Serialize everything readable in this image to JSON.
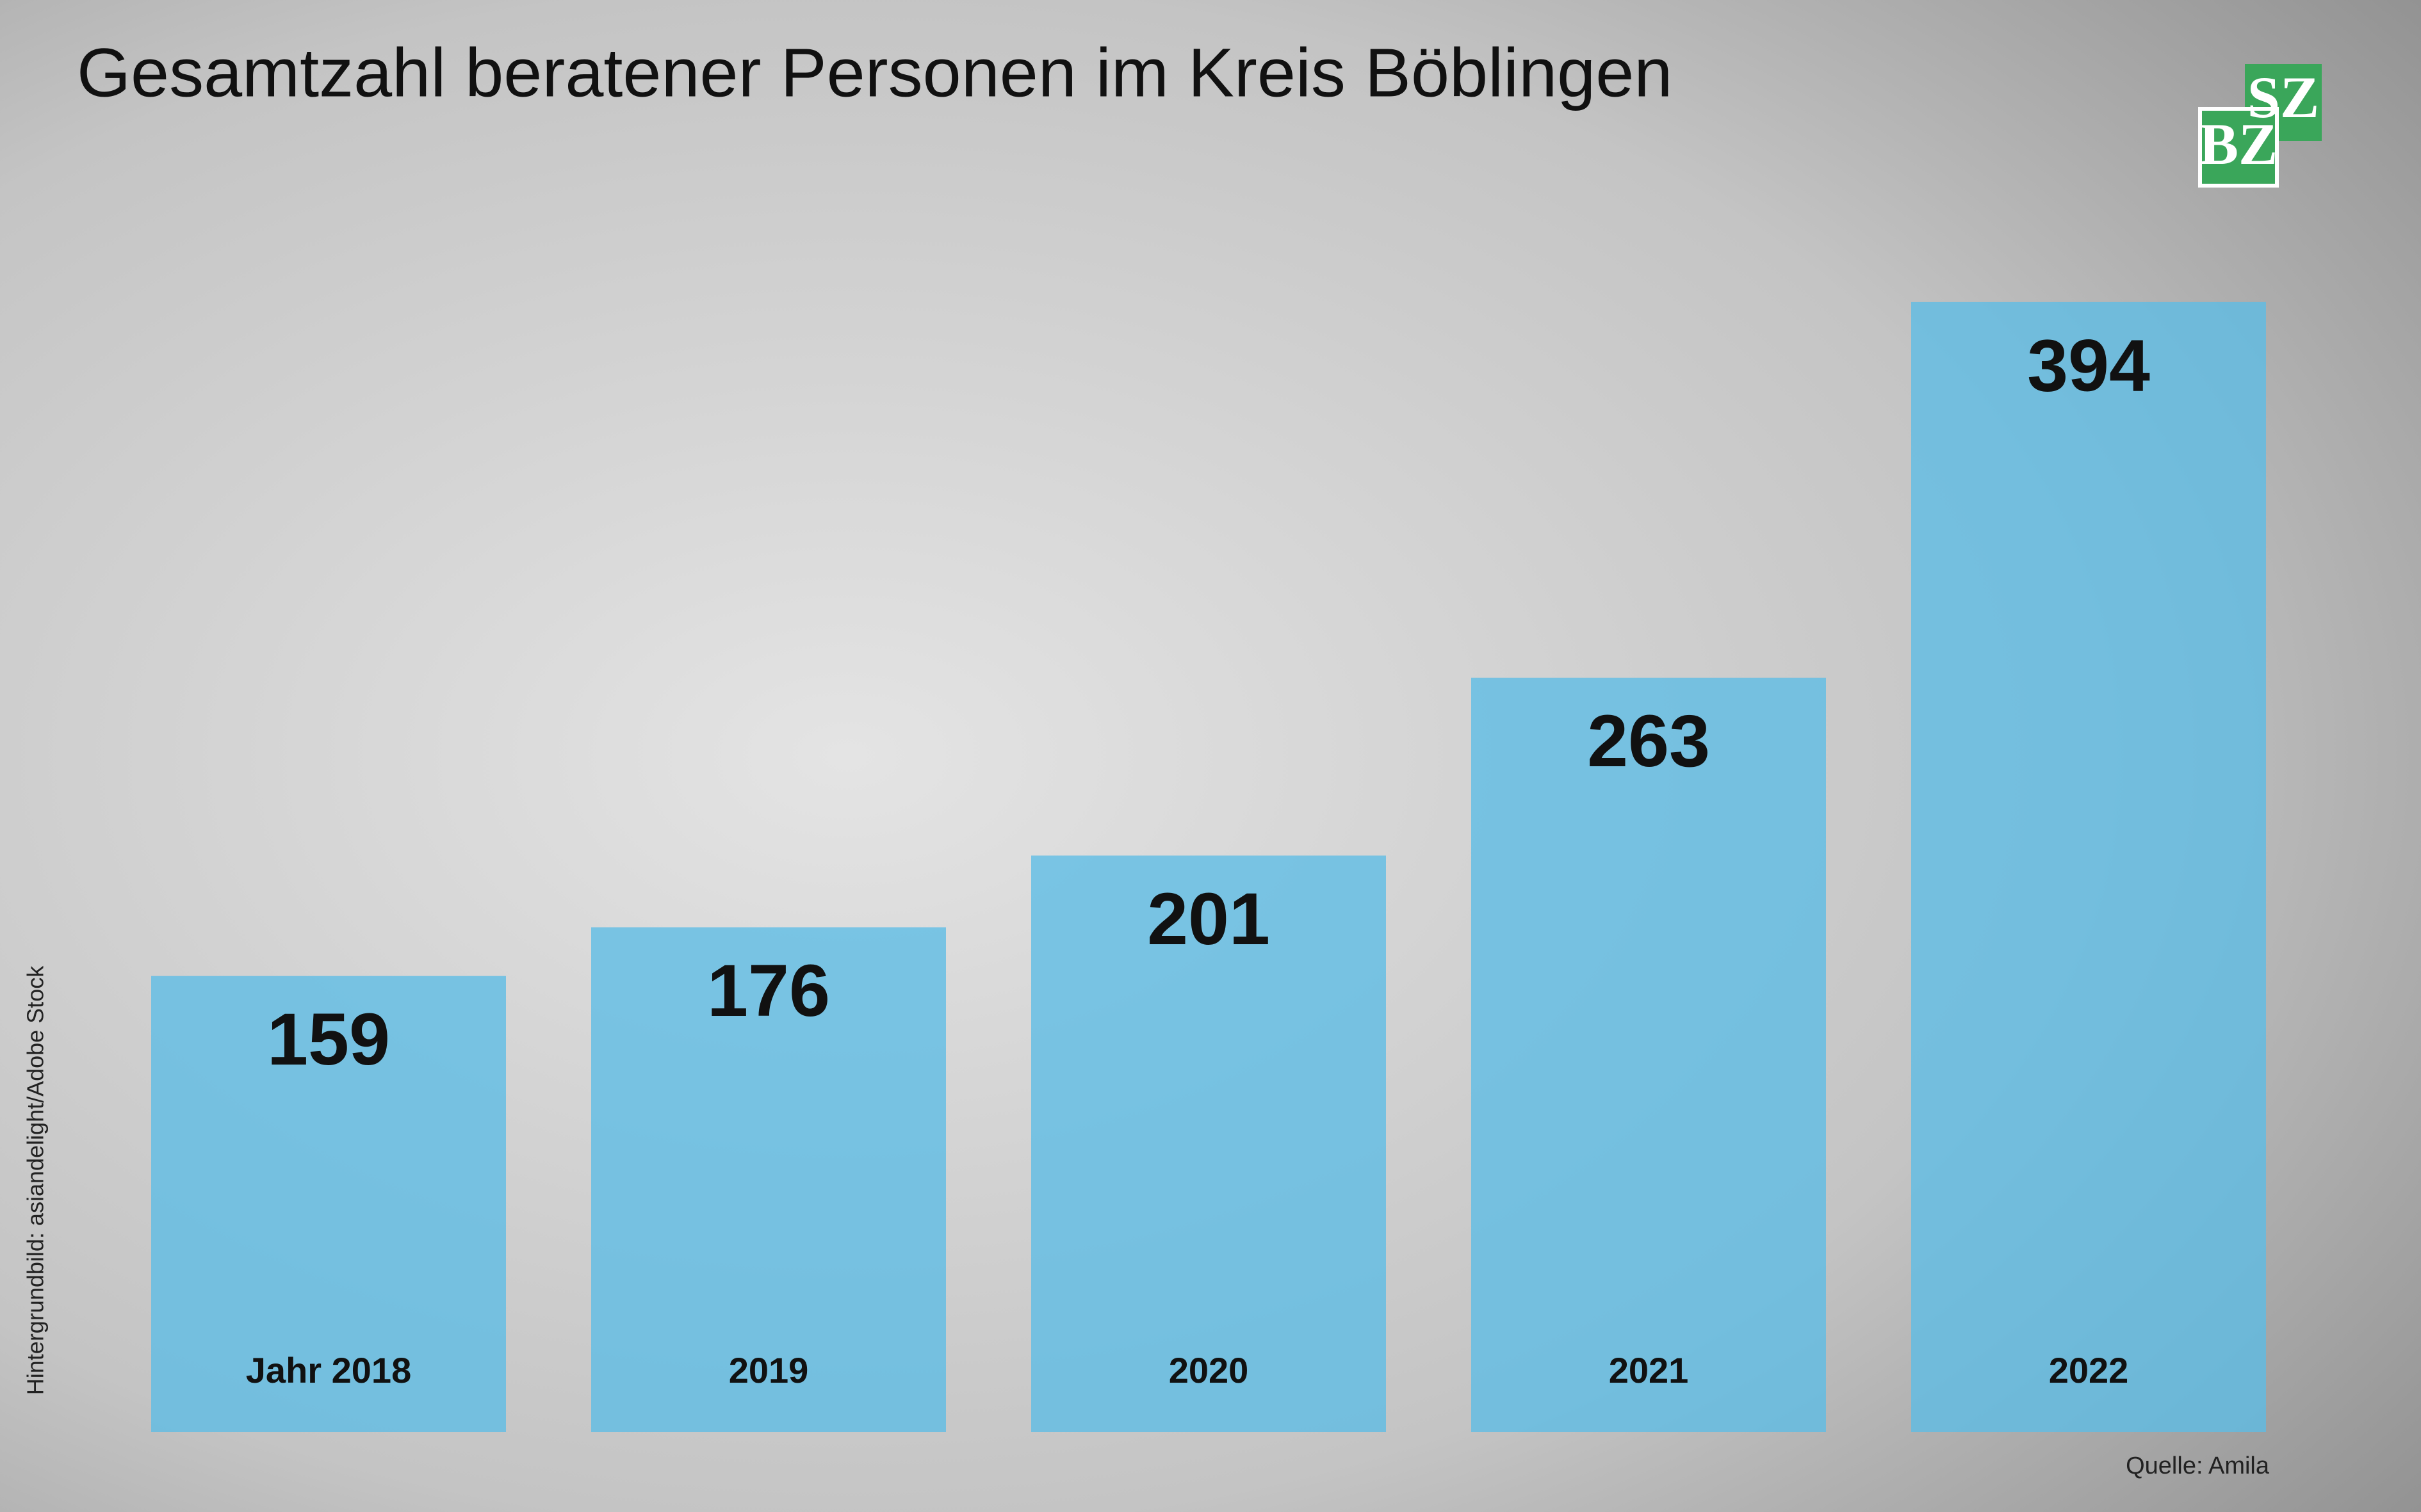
{
  "chart_data": {
    "type": "bar",
    "title": "Gesamtzahl beratener Personen im Kreis Böblingen",
    "categories": [
      "Jahr 2018",
      "2019",
      "2020",
      "2021",
      "2022"
    ],
    "values": [
      159,
      176,
      201,
      263,
      394
    ],
    "color": "#5cbde6",
    "ylim": [
      0,
      400
    ],
    "credit": "Hintergrundbild: asiandelight/Adobe Stock",
    "source": "Quelle: Amila",
    "logo": [
      "SZ",
      "BZ"
    ]
  }
}
